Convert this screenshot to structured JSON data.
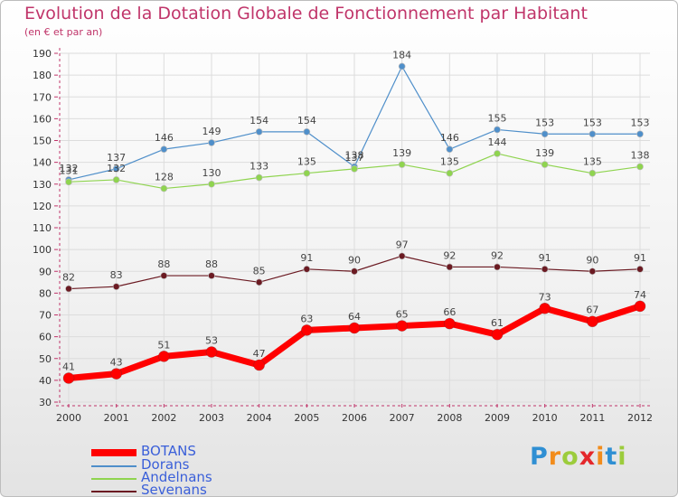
{
  "header": {
    "title": "Evolution de la Dotation Globale de Fonctionnement par Habitant",
    "subtitle": "(en € et par an)"
  },
  "logo": {
    "text": "Proxiti",
    "letters": [
      "P",
      "r",
      "o",
      "x",
      "i",
      "t",
      "i"
    ],
    "colors": [
      "#2f8fd3",
      "#f28c1b",
      "#9ccc3c",
      "#e4272b",
      "#f28c1b",
      "#2f8fd3",
      "#9ccc3c"
    ]
  },
  "chart_data": {
    "type": "line",
    "categories": [
      "2000",
      "2001",
      "2002",
      "2003",
      "2004",
      "2005",
      "2006",
      "2007",
      "2008",
      "2009",
      "2010",
      "2011",
      "2012"
    ],
    "ylim": [
      30,
      190
    ],
    "yticks": [
      30,
      40,
      50,
      60,
      70,
      80,
      90,
      100,
      110,
      120,
      130,
      140,
      150,
      160,
      170,
      180,
      190
    ],
    "grid": true,
    "legend_placement": "bottom-left",
    "series": [
      {
        "name": "BOTANS",
        "color": "#ff0000",
        "values": [
          41,
          43,
          51,
          53,
          47,
          63,
          64,
          65,
          66,
          61,
          73,
          67,
          74
        ]
      },
      {
        "name": "Dorans",
        "color": "#4f8fca",
        "values": [
          132,
          137,
          146,
          149,
          154,
          154,
          138,
          184,
          146,
          155,
          153,
          153,
          153
        ]
      },
      {
        "name": "Andelnans",
        "color": "#8fd44f",
        "values": [
          131,
          132,
          128,
          130,
          133,
          135,
          137,
          139,
          135,
          144,
          139,
          135,
          138
        ]
      },
      {
        "name": "Sevenans",
        "color": "#6b1a22",
        "values": [
          82,
          83,
          88,
          88,
          85,
          91,
          90,
          97,
          92,
          92,
          91,
          90,
          91
        ]
      }
    ]
  }
}
